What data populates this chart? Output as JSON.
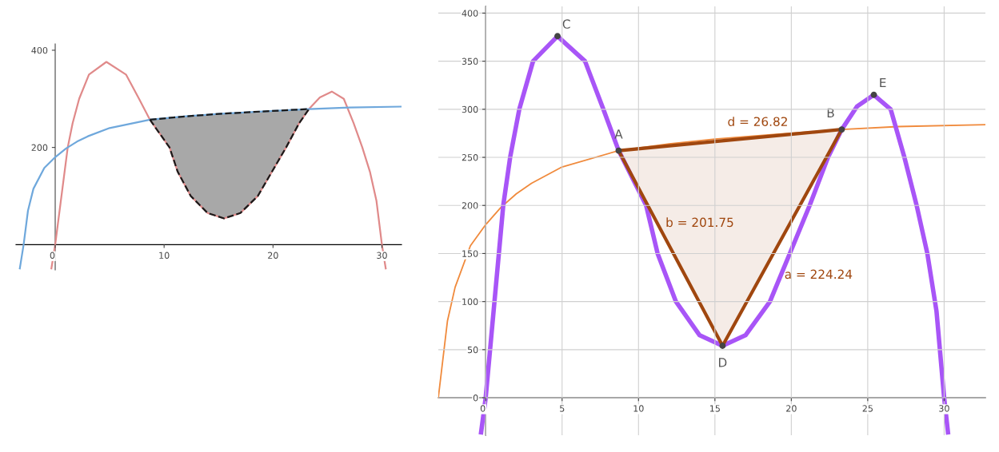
{
  "chart_data": [
    {
      "type": "line",
      "xlim": [
        -3.6,
        31.8
      ],
      "ylim": [
        -52,
        413
      ],
      "xticks": [
        0,
        10,
        20,
        30
      ],
      "yticks": [
        200,
        400
      ],
      "grid": false,
      "legend": false,
      "series": [
        {
          "color": "#e08a8a",
          "x": [
            -0.35,
            0,
            1.15,
            1.6,
            2.2,
            3.1,
            4.7,
            6.5,
            7.7,
            8.7,
            10.5,
            11.25,
            12.45,
            14,
            15.5,
            17,
            18.6,
            19.9,
            21.2,
            22.4,
            23.3,
            24.3,
            25.4,
            26.5,
            27.4,
            28.2,
            28.9,
            29.5,
            30,
            30.35
          ],
          "values": [
            -49,
            0,
            200,
            250,
            300,
            350,
            376,
            350,
            300,
            257,
            200,
            150,
            100,
            65,
            54,
            65,
            100,
            150,
            200,
            250,
            279,
            303,
            315,
            300,
            250,
            200,
            150,
            90,
            0,
            -49
          ]
        },
        {
          "color": "#6fa8dc",
          "x": [
            -3.25,
            -2.9,
            -2.5,
            -2,
            -1,
            0,
            1,
            2,
            3,
            5,
            8.7,
            12,
            15,
            19,
            23.3,
            27,
            31.8
          ],
          "values": [
            -49,
            0,
            70,
            115,
            158,
            180,
            198,
            212,
            223,
            240,
            257,
            264,
            269,
            274,
            279,
            282,
            284
          ]
        },
        {
          "color": "#1a1a1a",
          "line_style": "dashed",
          "x": [
            8.7,
            10.5,
            11.25,
            12.45,
            14,
            15.5,
            17,
            18.6,
            19.9,
            21.2,
            22.4,
            23.3
          ],
          "values": [
            257,
            200,
            150,
            100,
            65,
            54,
            65,
            100,
            150,
            200,
            250,
            279
          ],
          "lower": [
            257,
            200,
            150,
            100,
            65,
            54,
            65,
            100,
            150,
            200,
            250,
            279
          ],
          "upper": [
            257,
            261,
            262,
            265,
            267.5,
            270,
            272,
            273.5,
            275,
            276.5,
            278,
            279
          ]
        },
        {
          "color": "#1a1a1a",
          "line_style": "dashed",
          "x": [
            8.7,
            12,
            15,
            19,
            23.3
          ],
          "values": [
            257,
            264,
            269,
            274,
            279
          ]
        }
      ]
    },
    {
      "type": "line",
      "xlim": [
        -3.1,
        32.7
      ],
      "ylim": [
        -39,
        407
      ],
      "xticks": [
        0,
        5,
        10,
        15,
        20,
        25,
        30
      ],
      "yticks": [
        0,
        50,
        100,
        150,
        200,
        250,
        300,
        350,
        400
      ],
      "grid": true,
      "legend": false,
      "series": [
        {
          "color": "#f08a3c",
          "x": [
            -3.1,
            -2.5,
            -2,
            -1,
            0,
            1,
            2,
            3,
            5,
            8.7,
            12,
            15,
            19,
            23.3,
            27,
            32.7
          ],
          "values": [
            0,
            80,
            115,
            158,
            180,
            198,
            212,
            223,
            240,
            257,
            264,
            269,
            274,
            279,
            282,
            284
          ]
        },
        {
          "color": "#a855f7",
          "x": [
            -0.3,
            0,
            1.15,
            1.6,
            2.2,
            3.1,
            4.7,
            6.5,
            7.7,
            8.7,
            10.5,
            11.25,
            12.45,
            14,
            15.5,
            17,
            18.6,
            19.9,
            21.2,
            22.4,
            23.3,
            24.3,
            25.4,
            26.5,
            27.4,
            28.2,
            28.9,
            29.5,
            30,
            30.25
          ],
          "values": [
            -36,
            0,
            200,
            250,
            300,
            350,
            376,
            350,
            300,
            257,
            200,
            150,
            100,
            65,
            54,
            65,
            100,
            150,
            200,
            250,
            279,
            303,
            315,
            300,
            250,
            200,
            150,
            90,
            0,
            -36
          ]
        },
        {
          "color": "#a0470f",
          "x": [
            8.7,
            15.5,
            23.3
          ],
          "values": [
            257,
            54,
            279
          ],
          "lower": [
            257,
            54,
            279
          ],
          "upper": [
            257,
            267,
            279
          ]
        },
        {
          "color": "#a0470f",
          "x": [
            8.7,
            23.3
          ],
          "values": [
            257,
            279
          ]
        },
        {
          "type": "scatter",
          "marker": "circle",
          "color": "#444444",
          "x": [
            8.7,
            23.3,
            4.7,
            15.5,
            25.4
          ],
          "values": [
            257,
            279,
            376,
            54,
            315
          ]
        }
      ],
      "annotations": [
        {
          "text": "A",
          "x": 8.7,
          "y": 257
        },
        {
          "text": "B",
          "x": 23.3,
          "y": 279
        },
        {
          "text": "C",
          "x": 4.7,
          "y": 376
        },
        {
          "text": "D",
          "x": 15.5,
          "y": 54
        },
        {
          "text": "E",
          "x": 25.4,
          "y": 315
        },
        "d = 26.82",
        "b = 201.75",
        "a = 224.24"
      ]
    }
  ]
}
